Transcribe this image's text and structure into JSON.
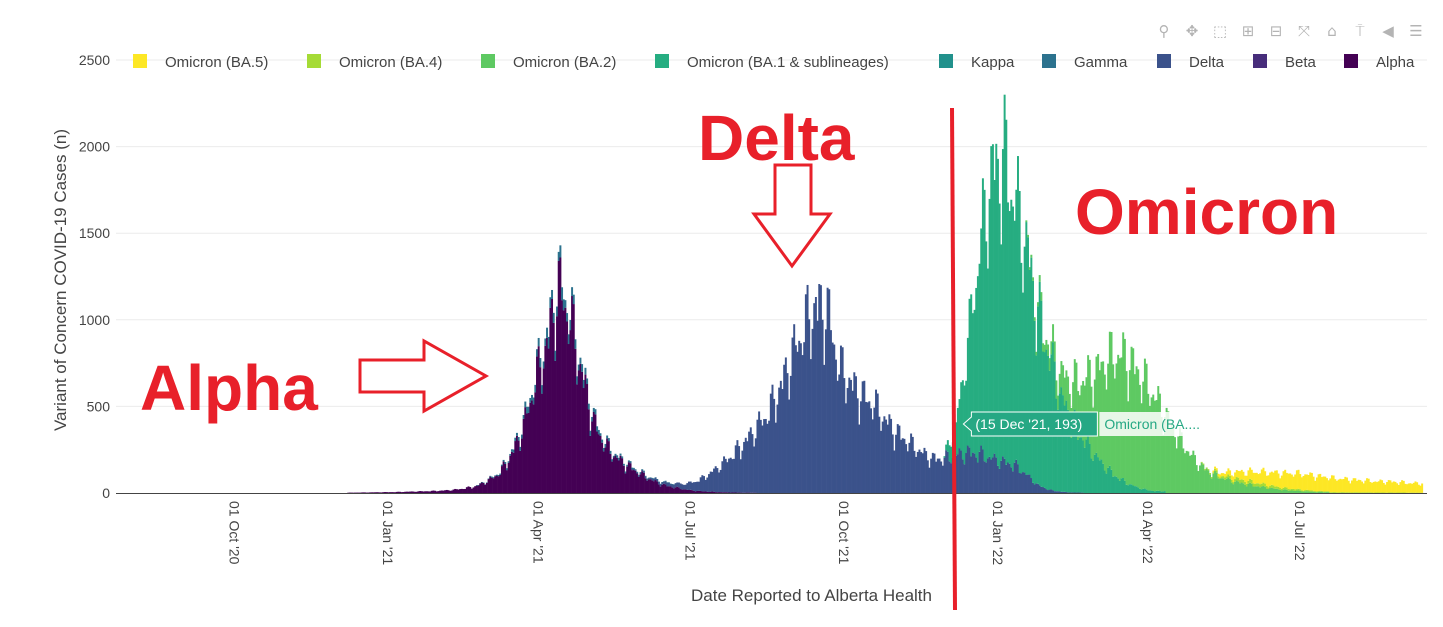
{
  "modebar": {
    "buttons": [
      {
        "name": "zoom-icon",
        "glyph": "⚲"
      },
      {
        "name": "pan-icon",
        "glyph": "✥"
      },
      {
        "name": "box-select-icon",
        "glyph": "⬚"
      },
      {
        "name": "zoom-in-icon",
        "glyph": "⊞"
      },
      {
        "name": "zoom-out-icon",
        "glyph": "⊟"
      },
      {
        "name": "autoscale-icon",
        "glyph": "⤧"
      },
      {
        "name": "reset-axes-icon",
        "glyph": "⌂"
      },
      {
        "name": "spike-lines-icon",
        "glyph": "⍑"
      },
      {
        "name": "hover-closest-icon",
        "glyph": "◀"
      },
      {
        "name": "hover-compare-icon",
        "glyph": "☰"
      }
    ]
  },
  "annotations": {
    "alpha": "Alpha",
    "delta": "Delta",
    "omicron": "Omicron",
    "color": "#e8202a"
  },
  "hover": {
    "point": "(15 Dec '21, 193)",
    "series": "Omicron (BA....",
    "color": "#26a884"
  },
  "chart_data": {
    "type": "bar",
    "stacked": true,
    "xlabel": "Date Reported to Alberta Health",
    "ylabel": "Variant of Concern COVID-19 Cases (n)",
    "ylim": [
      0,
      2500
    ],
    "yticks": [
      0,
      500,
      1000,
      1500,
      2000,
      2500
    ],
    "xticks": [
      "01 Oct '20",
      "01 Jan '21",
      "01 Apr '21",
      "01 Jul '21",
      "01 Oct '21",
      "01 Jan '22",
      "01 Apr '22",
      "01 Jul '22"
    ],
    "xrange": [
      "2020-07-28",
      "2022-09-21"
    ],
    "legend_position": "top",
    "gridlines": true,
    "legend": [
      {
        "name": "Omicron (BA.5)",
        "color": "#fde725"
      },
      {
        "name": "Omicron (BA.4)",
        "color": "#a5db36"
      },
      {
        "name": "Omicron (BA.2)",
        "color": "#5ec962"
      },
      {
        "name": "Omicron (BA.1 & sublineages)",
        "color": "#26ad81"
      },
      {
        "name": "Kappa",
        "color": "#21918c"
      },
      {
        "name": "Gamma",
        "color": "#2c728e"
      },
      {
        "name": "Delta",
        "color": "#3b528b"
      },
      {
        "name": "Beta",
        "color": "#472d7b"
      },
      {
        "name": "Alpha",
        "color": "#440154"
      }
    ],
    "stack_order": [
      "Alpha",
      "Beta",
      "Delta",
      "Gamma",
      "Kappa",
      "Omicron (BA.1 & sublineages)",
      "Omicron (BA.2)",
      "Omicron (BA.4)",
      "Omicron (BA.5)"
    ],
    "series_weekly": [
      {
        "name": "Alpha",
        "start": "2020-12-14",
        "values": [
          2,
          3,
          4,
          5,
          6,
          8,
          10,
          12,
          15,
          20,
          30,
          45,
          80,
          130,
          250,
          420,
          700,
          950,
          1300,
          1100,
          750,
          450,
          300,
          220,
          170,
          120,
          80,
          50,
          35,
          20,
          12,
          8,
          5,
          3,
          2
        ]
      },
      {
        "name": "Gamma",
        "start": "2021-03-01",
        "values": [
          2,
          4,
          8,
          15,
          30,
          45,
          60,
          70,
          60,
          45,
          30,
          20,
          12,
          8,
          5,
          3,
          2
        ]
      },
      {
        "name": "Delta",
        "start": "2021-05-24",
        "values": [
          3,
          5,
          8,
          12,
          18,
          25,
          40,
          70,
          120,
          180,
          250,
          330,
          420,
          520,
          680,
          880,
          1050,
          1200,
          1150,
          800,
          700,
          620,
          560,
          460,
          380,
          320,
          260,
          220,
          220,
          240,
          260,
          250,
          220,
          200,
          180,
          120,
          50,
          20,
          8,
          3
        ]
      },
      {
        "name": "Omicron (BA.1 & sublineages)",
        "start": "2021-12-06",
        "values": [
          10,
          193,
          700,
          1300,
          1800,
          1950,
          1700,
          1450,
          1100,
          850,
          600,
          450,
          330,
          230,
          150,
          90,
          50,
          25,
          12
        ]
      },
      {
        "name": "Omicron (BA.2)",
        "start": "2022-01-24",
        "values": [
          10,
          30,
          80,
          150,
          250,
          400,
          550,
          700,
          800,
          780,
          700,
          600,
          480,
          360,
          250,
          170,
          120,
          90,
          70,
          55,
          40,
          30,
          20,
          15,
          10,
          6
        ]
      },
      {
        "name": "Omicron (BA.4)",
        "start": "2022-05-09",
        "values": [
          5,
          10,
          15,
          20,
          22,
          20,
          16,
          12,
          10,
          8,
          6,
          5,
          5,
          4,
          4,
          3,
          3,
          3,
          2
        ]
      },
      {
        "name": "Omicron (BA.5)",
        "start": "2022-05-16",
        "values": [
          10,
          25,
          45,
          60,
          75,
          85,
          95,
          100,
          100,
          95,
          90,
          85,
          80,
          75,
          70,
          70,
          65,
          60
        ]
      }
    ]
  }
}
